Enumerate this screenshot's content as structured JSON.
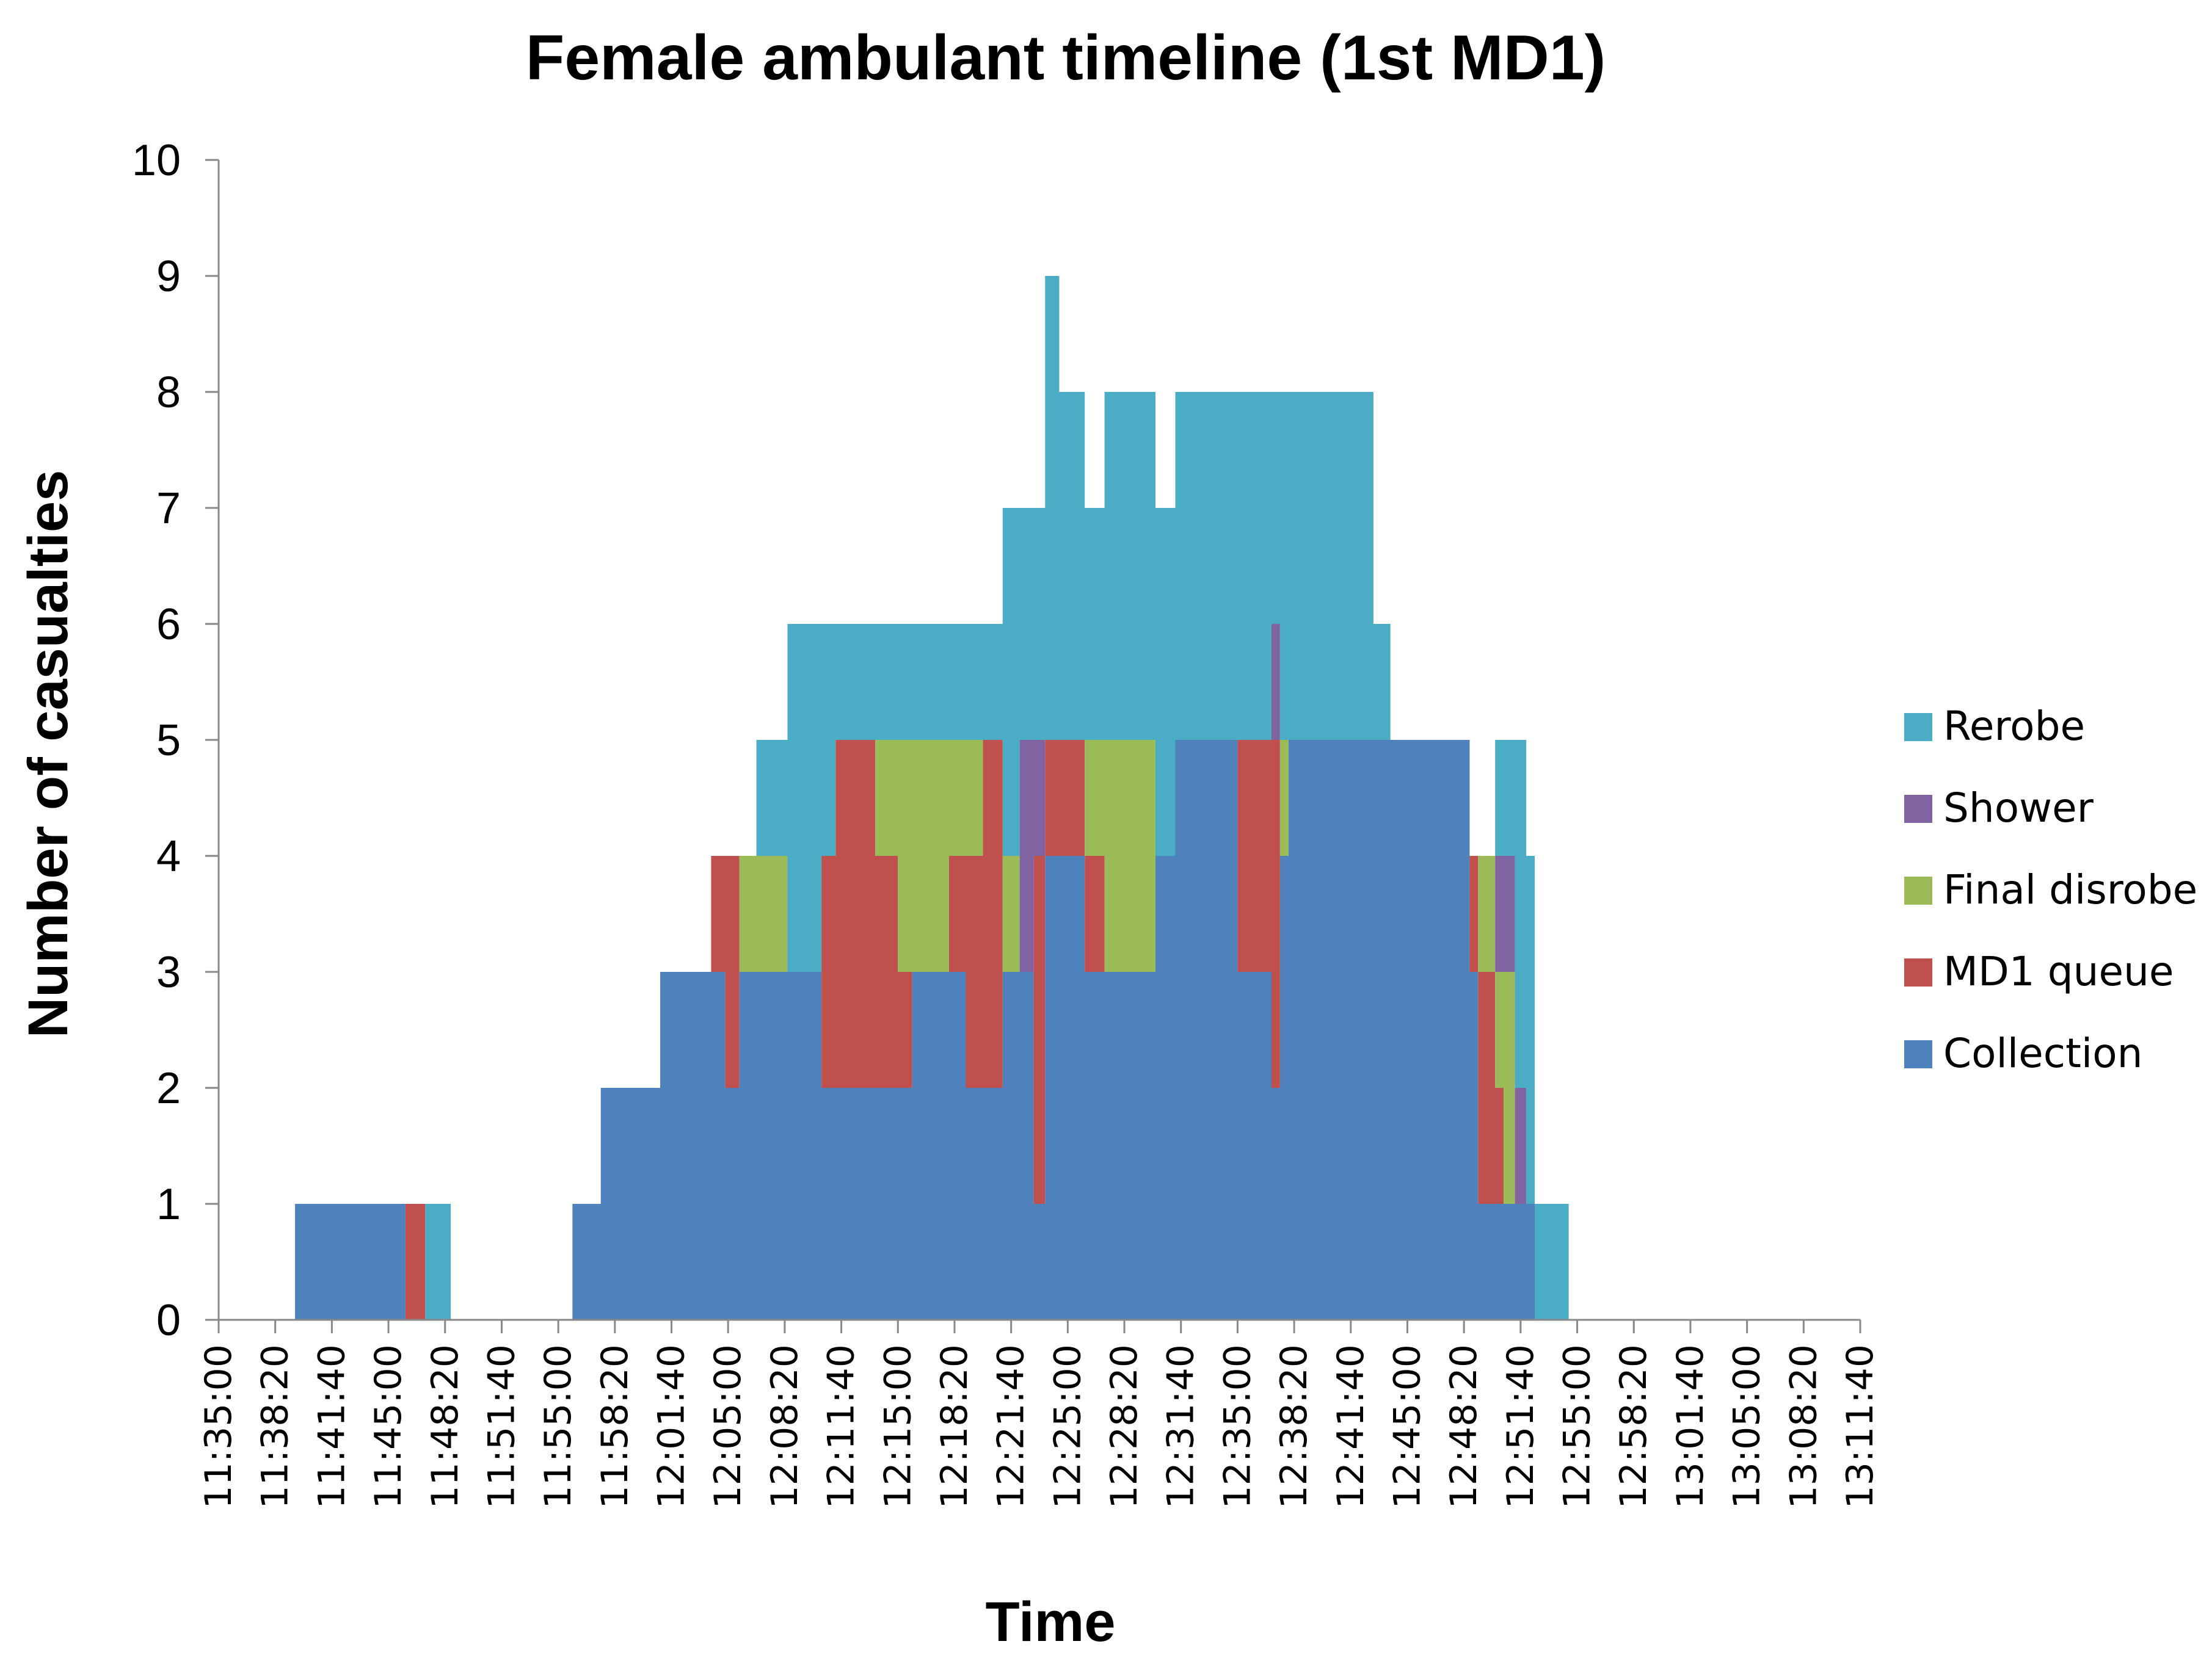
{
  "chart_data": {
    "type": "area",
    "stacked": true,
    "title": "Female ambulant timeline (1st MD1)",
    "xlabel": "Time",
    "ylabel": "Number of casualties",
    "ylim": [
      0,
      10
    ],
    "yticks": [
      0,
      1,
      2,
      3,
      4,
      5,
      6,
      7,
      8,
      9,
      10
    ],
    "xlim": [
      "11:35:00",
      "13:11:40"
    ],
    "xticks": [
      "11:35:00",
      "11:38:20",
      "11:41:40",
      "11:45:00",
      "11:48:20",
      "11:51:40",
      "11:55:00",
      "11:58:20",
      "12:01:40",
      "12:05:00",
      "12:08:20",
      "12:11:40",
      "12:15:00",
      "12:18:20",
      "12:21:40",
      "12:25:00",
      "12:28:20",
      "12:31:40",
      "12:35:00",
      "12:38:20",
      "12:41:40",
      "12:45:00",
      "12:48:20",
      "12:51:40",
      "12:55:00",
      "12:58:20",
      "13:01:40",
      "13:05:00",
      "13:08:20",
      "13:11:40"
    ],
    "legend_position": "right",
    "x": [
      "11:35:00",
      "11:37:10",
      "11:39:30",
      "11:43:00",
      "11:44:20",
      "11:46:00",
      "11:46:40",
      "11:47:10",
      "11:47:50",
      "11:48:40",
      "11:49:20",
      "11:51:20",
      "11:53:00",
      "11:54:30",
      "11:55:50",
      "11:57:30",
      "11:58:00",
      "11:59:00",
      "12:00:00",
      "12:01:00",
      "12:02:00",
      "12:04:00",
      "12:04:50",
      "12:05:40",
      "12:06:40",
      "12:07:40",
      "12:08:30",
      "12:09:50",
      "12:10:30",
      "12:11:20",
      "12:12:30",
      "12:13:40",
      "12:15:00",
      "12:15:50",
      "12:16:40",
      "12:18:00",
      "12:19:00",
      "12:20:00",
      "12:21:10",
      "12:22:10",
      "12:23:00",
      "12:23:40",
      "12:24:30",
      "12:26:00",
      "12:27:10",
      "12:28:10",
      "12:29:10",
      "12:30:10",
      "12:31:20",
      "12:32:00",
      "12:33:00",
      "12:34:00",
      "12:35:00",
      "12:36:00",
      "12:37:00",
      "12:37:30",
      "12:38:00",
      "12:38:30",
      "12:39:00",
      "12:40:00",
      "12:41:00",
      "12:42:00",
      "12:43:00",
      "12:44:00",
      "12:45:00",
      "12:46:00",
      "12:47:00",
      "12:48:00",
      "12:48:40",
      "12:49:10",
      "12:49:40",
      "12:50:10",
      "12:50:40",
      "12:51:20",
      "12:52:00",
      "12:52:30",
      "12:53:00",
      "12:53:40",
      "12:54:30",
      "12:55:20",
      "12:56:10",
      "12:57:00",
      "12:57:50",
      "12:58:40",
      "12:59:40",
      "13:01:00",
      "13:02:30",
      "13:04:30",
      "13:06:00",
      "13:08:20",
      "13:10:00",
      "13:11:40"
    ],
    "series": [
      {
        "name": "Collection",
        "color": "#4F81BD",
        "values": [
          0,
          0,
          1,
          1,
          1,
          0,
          0,
          0,
          0,
          0,
          0,
          0,
          0,
          0,
          1,
          2,
          2,
          2,
          2,
          3,
          3,
          3,
          2,
          3,
          3,
          3,
          3,
          3,
          2,
          2,
          2,
          2,
          2,
          3,
          3,
          3,
          2,
          2,
          3,
          3,
          1,
          4,
          4,
          3,
          3,
          3,
          3,
          4,
          5,
          5,
          5,
          5,
          3,
          3,
          2,
          4,
          5,
          5,
          5,
          5,
          5,
          5,
          5,
          5,
          5,
          5,
          5,
          5,
          3,
          1,
          1,
          1,
          1,
          1,
          1,
          0,
          0,
          0,
          0,
          0,
          0,
          0,
          0,
          0,
          0,
          0,
          0,
          0,
          0,
          0,
          0,
          0
        ]
      },
      {
        "name": "MD1 queue",
        "color": "#C0504D",
        "values": [
          0,
          0,
          0,
          0,
          0,
          1,
          1,
          0,
          0,
          0,
          0,
          0,
          0,
          0,
          0,
          0,
          0,
          0,
          0,
          0,
          0,
          1,
          2,
          0,
          0,
          0,
          0,
          0,
          2,
          3,
          3,
          2,
          1,
          0,
          0,
          1,
          2,
          3,
          0,
          0,
          3,
          1,
          1,
          1,
          0,
          0,
          0,
          0,
          0,
          0,
          0,
          0,
          2,
          2,
          3,
          0,
          0,
          0,
          0,
          0,
          0,
          0,
          0,
          0,
          0,
          0,
          0,
          0,
          1,
          2,
          2,
          1,
          0,
          0,
          0,
          0,
          0,
          0,
          0,
          0,
          0,
          0,
          0,
          0,
          0,
          0,
          0,
          0,
          0,
          0,
          0,
          0
        ]
      },
      {
        "name": "Final disrobe",
        "color": "#9BBB59",
        "values": [
          0,
          0,
          0,
          0,
          0,
          0,
          0,
          0,
          0,
          0,
          0,
          0,
          0,
          0,
          0,
          0,
          0,
          0,
          0,
          0,
          0,
          0,
          0,
          1,
          1,
          1,
          0,
          0,
          0,
          0,
          0,
          1,
          2,
          2,
          2,
          1,
          1,
          0,
          1,
          0,
          0,
          0,
          0,
          1,
          2,
          2,
          2,
          0,
          0,
          0,
          0,
          0,
          0,
          0,
          0,
          1,
          0,
          0,
          0,
          0,
          0,
          0,
          0,
          0,
          0,
          0,
          0,
          0,
          0,
          1,
          1,
          1,
          2,
          0,
          0,
          0,
          0,
          0,
          0,
          0,
          0,
          0,
          0,
          0,
          0,
          0,
          0,
          0,
          0,
          0,
          0,
          0
        ]
      },
      {
        "name": "Shower",
        "color": "#8064A2",
        "values": [
          0,
          0,
          0,
          0,
          0,
          0,
          0,
          0,
          0,
          0,
          0,
          0,
          0,
          0,
          0,
          0,
          0,
          0,
          0,
          0,
          0,
          0,
          0,
          0,
          0,
          0,
          0,
          0,
          0,
          0,
          0,
          0,
          0,
          0,
          0,
          0,
          0,
          0,
          0,
          2,
          1,
          0,
          0,
          0,
          0,
          0,
          0,
          0,
          0,
          0,
          0,
          0,
          0,
          0,
          1,
          0,
          0,
          0,
          0,
          0,
          0,
          0,
          0,
          0,
          0,
          0,
          0,
          0,
          0,
          0,
          0,
          1,
          1,
          1,
          0,
          0,
          0,
          0,
          0,
          0,
          0,
          0,
          0,
          0,
          0,
          0,
          0,
          0,
          0,
          0,
          0,
          0
        ]
      },
      {
        "name": "Rerobe",
        "color": "#4BACC6",
        "values": [
          0,
          0,
          0,
          0,
          0,
          0,
          0,
          1,
          1,
          0,
          0,
          0,
          0,
          0,
          0,
          0,
          0,
          0,
          0,
          0,
          0,
          0,
          0,
          0,
          1,
          1,
          3,
          3,
          2,
          1,
          1,
          1,
          1,
          1,
          1,
          1,
          1,
          1,
          3,
          2,
          2,
          4,
          3,
          2,
          3,
          3,
          3,
          3,
          3,
          3,
          3,
          3,
          3,
          3,
          2,
          3,
          3,
          3,
          3,
          3,
          3,
          3,
          1,
          0,
          0,
          0,
          0,
          0,
          0,
          0,
          0,
          1,
          1,
          3,
          3,
          1,
          1,
          1,
          0,
          0,
          0,
          0,
          0,
          0,
          0,
          0,
          0,
          0,
          0,
          0,
          0,
          0
        ]
      }
    ]
  }
}
